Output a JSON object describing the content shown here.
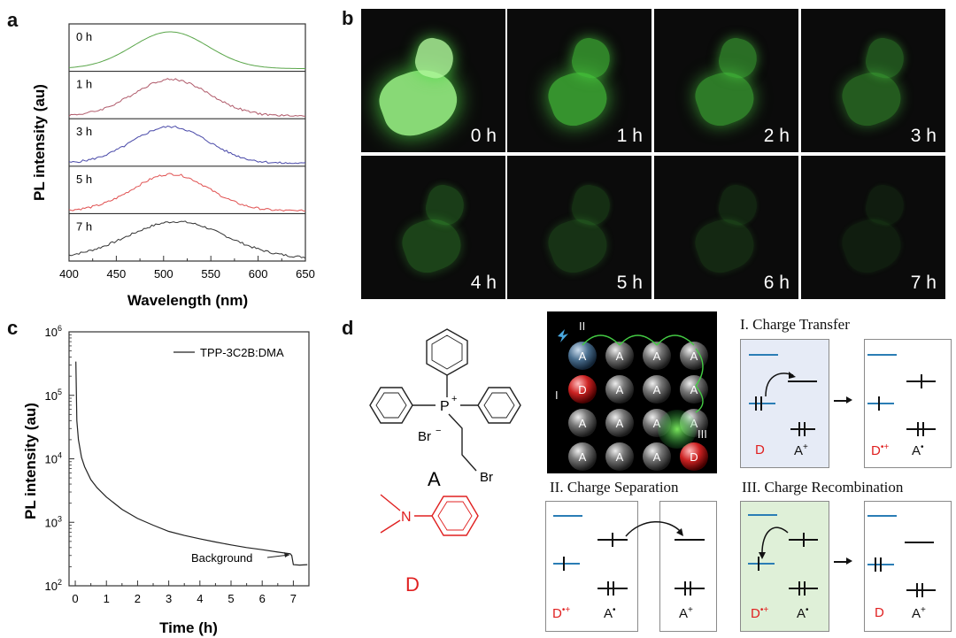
{
  "panels": {
    "a": "a",
    "b": "b",
    "c": "c",
    "d": "d"
  },
  "panel_a": {
    "ylabel": "PL intensity (au)",
    "xlabel": "Wavelength (nm)",
    "xticks": [
      "400",
      "450",
      "500",
      "550",
      "600",
      "650"
    ],
    "traces": [
      {
        "label": "0 h",
        "color": "#5aa64a"
      },
      {
        "label": "1 h",
        "color": "#b05a6a"
      },
      {
        "label": "3 h",
        "color": "#4848a8"
      },
      {
        "label": "5 h",
        "color": "#e05050"
      },
      {
        "label": "7 h",
        "color": "#333333"
      }
    ]
  },
  "panel_b": {
    "frames": [
      {
        "label": "0 h",
        "intensity": 1.0
      },
      {
        "label": "1 h",
        "intensity": 0.85
      },
      {
        "label": "2 h",
        "intensity": 0.7
      },
      {
        "label": "3 h",
        "intensity": 0.5
      },
      {
        "label": "4 h",
        "intensity": 0.35
      },
      {
        "label": "5 h",
        "intensity": 0.25
      },
      {
        "label": "6 h",
        "intensity": 0.18
      },
      {
        "label": "7 h",
        "intensity": 0.12
      }
    ]
  },
  "chart_data": {
    "type": "line",
    "title": "",
    "xlabel": "Time (h)",
    "ylabel": "PL intensity (au)",
    "yscale": "log",
    "xlim": [
      -0.2,
      7.5
    ],
    "ylim": [
      100,
      1000000
    ],
    "xticks": [
      "0",
      "1",
      "2",
      "3",
      "4",
      "5",
      "6",
      "7"
    ],
    "yticks": [
      {
        "base": "10",
        "exp": "2"
      },
      {
        "base": "10",
        "exp": "3"
      },
      {
        "base": "10",
        "exp": "4"
      },
      {
        "base": "10",
        "exp": "5"
      },
      {
        "base": "10",
        "exp": "6"
      }
    ],
    "series": [
      {
        "name": "TPP-3C2B:DMA",
        "x": [
          0.02,
          0.05,
          0.1,
          0.2,
          0.3,
          0.5,
          0.7,
          1.0,
          1.5,
          2.0,
          2.5,
          3.0,
          3.5,
          4.0,
          4.5,
          5.0,
          5.5,
          6.0,
          6.5,
          6.9,
          6.95,
          7.0,
          7.2,
          7.45
        ],
        "y": [
          340000,
          40000,
          20000,
          10500,
          7500,
          4700,
          3500,
          2500,
          1600,
          1150,
          900,
          720,
          620,
          550,
          490,
          440,
          400,
          370,
          340,
          320,
          300,
          215,
          212,
          215
        ]
      }
    ],
    "legend": "top-right",
    "annotation": "Background"
  },
  "panel_d": {
    "molecule_A": {
      "label": "A",
      "anion": "Br",
      "anion_sup": "−",
      "cation_atom": "P",
      "cation_sup": "+",
      "substituent": "Br"
    },
    "molecule_D": {
      "label": "D",
      "atom": "N"
    },
    "lattice": {
      "step_I": "I",
      "step_II": "II",
      "step_III": "III",
      "A": "A",
      "D": "D"
    },
    "charge_transfer": {
      "title": "I. Charge Transfer",
      "before_D": "D",
      "before_A": "A",
      "before_A_sup": "+",
      "after_D": "D",
      "after_D_sup": "•+",
      "after_A": "A",
      "after_A_sup": "•"
    },
    "charge_separation": {
      "title": "II. Charge Separation",
      "before_D": "D",
      "before_D_sup": "•+",
      "before_A": "A",
      "before_A_sup": "•",
      "after_A": "A",
      "after_A_sup": "+"
    },
    "charge_recombination": {
      "title": "III. Charge Recombination",
      "before_D": "D",
      "before_D_sup": "•+",
      "before_A": "A",
      "before_A_sup": "•",
      "after_D": "D",
      "after_A": "A",
      "after_A_sup": "+"
    }
  }
}
